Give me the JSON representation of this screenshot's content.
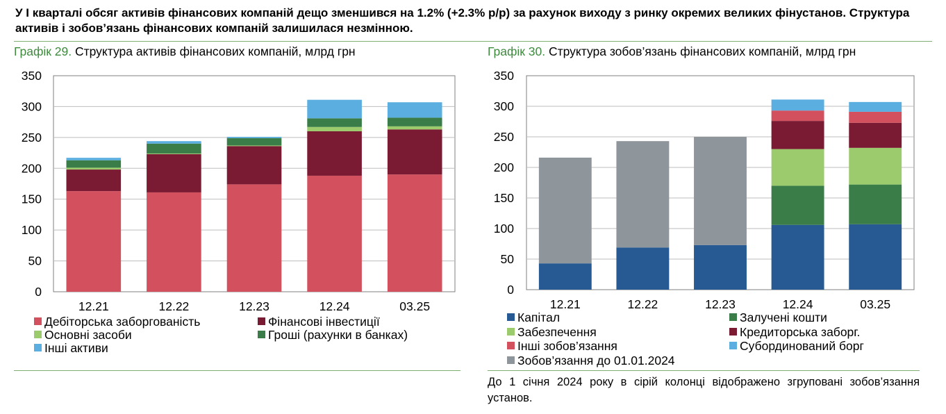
{
  "headline": "У І кварталі обсяг активів фінансових компаній дещо зменшився на 1.2% (+2.3% р/р) за рахунок виходу з ринку окремих великих фінустанов. Структура активів і зобов’язань фінансових компаній залишилася незмінною.",
  "chart_data": [
    {
      "type": "bar",
      "stacked": true,
      "number_label": "Графік 29.",
      "title": "Структура активів фінансових компаній, млрд грн",
      "categories": [
        "12.21",
        "12.22",
        "12.23",
        "12.24",
        "03.25"
      ],
      "ylim": [
        0,
        350
      ],
      "yticks": [
        "0",
        "50",
        "100",
        "150",
        "200",
        "250",
        "300",
        "350"
      ],
      "series": [
        {
          "name": "Дебіторська заборгованість",
          "color": "#d3515e",
          "values": [
            163,
            161,
            174,
            188,
            190
          ]
        },
        {
          "name": "Фінансові інвестиції",
          "color": "#7a1a33",
          "values": [
            35,
            62,
            62,
            72,
            73
          ]
        },
        {
          "name": "Основні засоби",
          "color": "#9bcb6d",
          "values": [
            3,
            1,
            1,
            7,
            5
          ]
        },
        {
          "name": "Гроші (рахунки в банках)",
          "color": "#3a7d48",
          "values": [
            12,
            16,
            12,
            14,
            14
          ]
        },
        {
          "name": "Інші активи",
          "color": "#5aafe0",
          "values": [
            4,
            4,
            2,
            30,
            25
          ]
        }
      ]
    },
    {
      "type": "bar",
      "stacked": true,
      "number_label": "Графік 30.",
      "title": "Структура зобов’язань фінансових компаній, млрд грн",
      "categories": [
        "12.21",
        "12.22",
        "12.23",
        "12.24",
        "03.25"
      ],
      "ylim": [
        0,
        350
      ],
      "yticks": [
        "0",
        "50",
        "100",
        "150",
        "200",
        "250",
        "300",
        "350"
      ],
      "series": [
        {
          "name": "Капітал",
          "color": "#275a93",
          "values": [
            43,
            69,
            73,
            106,
            107
          ]
        },
        {
          "name": "Залучені кошти",
          "color": "#3a7d48",
          "values": [
            0,
            0,
            0,
            64,
            65
          ]
        },
        {
          "name": "Забезпечення",
          "color": "#9bcb6d",
          "values": [
            0,
            0,
            0,
            60,
            60
          ]
        },
        {
          "name": "Кредиторська заборг.",
          "color": "#7a1a33",
          "values": [
            0,
            0,
            0,
            46,
            41
          ]
        },
        {
          "name": "Інші зобов’язання",
          "color": "#d3515e",
          "values": [
            0,
            0,
            0,
            17,
            18
          ]
        },
        {
          "name": "Субординований борг",
          "color": "#5aafe0",
          "values": [
            0,
            0,
            0,
            18,
            16
          ]
        },
        {
          "name": "Зобов’язання до 01.01.2024",
          "color": "#8e959b",
          "values": [
            173,
            174,
            177,
            0,
            0
          ]
        }
      ],
      "note": "До 1 січня 2024 року в сірій колонці відображено згруповані зобов’язання установ."
    }
  ]
}
